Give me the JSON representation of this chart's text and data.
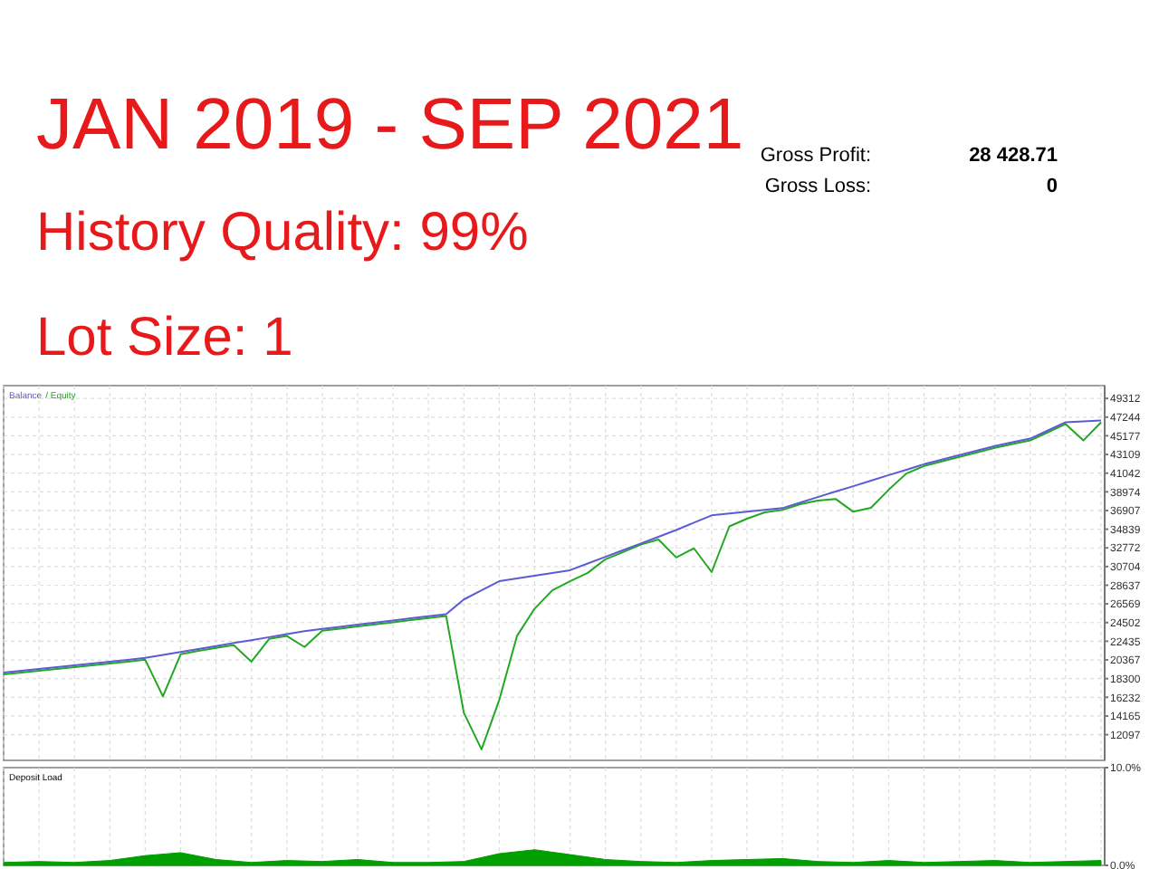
{
  "chart_data": [
    {
      "type": "line",
      "title": "JAN 2019 - SEP 2021",
      "subtitle": "History Quality: 99%",
      "annotations": [
        "Lot Size: 1",
        "Gross Profit:",
        "28 428.71",
        "Gross Loss:",
        "0"
      ],
      "categories": [
        null,
        null,
        null,
        null,
        null,
        null,
        null,
        null,
        null,
        null,
        null,
        null,
        null,
        null,
        null,
        null,
        null,
        null,
        null,
        null,
        null,
        null,
        null,
        null,
        null,
        null,
        null,
        null,
        null,
        null,
        null,
        null,
        null,
        null,
        null,
        null,
        null,
        null,
        null,
        null,
        null,
        null,
        null,
        null,
        null,
        null,
        null,
        null,
        null,
        null,
        null,
        null,
        null,
        null,
        null,
        null,
        null,
        null,
        null,
        null,
        null,
        null,
        null
      ],
      "ylim": [
        9250,
        50730
      ],
      "yticks": [
        12097,
        14165,
        16232,
        18300,
        20367,
        22435,
        24502,
        26569,
        28637,
        30704,
        32772,
        34839,
        36907,
        38974,
        41042,
        43109,
        45177,
        47244,
        49312
      ],
      "grid": true,
      "tick_labels": "y",
      "series": [
        {
          "name": "Balance",
          "color": "#5b5bd6",
          "values": [
            18970,
            19170,
            19370,
            19570,
            19780,
            19980,
            20180,
            20380,
            20590,
            20920,
            21250,
            21580,
            21910,
            22240,
            22560,
            22890,
            23220,
            23550,
            23810,
            24040,
            24270,
            24510,
            24740,
            24970,
            25210,
            25440,
            27060,
            28070,
            29080,
            29390,
            29690,
            29990,
            30300,
            31040,
            31780,
            32520,
            33260,
            34000,
            34750,
            35560,
            36370,
            36570,
            36770,
            36970,
            37170,
            37780,
            38390,
            39000,
            39600,
            40210,
            40820,
            41420,
            42030,
            42540,
            43040,
            43550,
            44050,
            44460,
            44860,
            45770,
            46680,
            46770,
            46870
          ]
        },
        {
          "name": "/ Equity",
          "color": "#22a822",
          "values": [
            18770,
            18970,
            19170,
            19370,
            19580,
            19780,
            19980,
            20180,
            20390,
            16340,
            20990,
            21380,
            21710,
            22000,
            20180,
            22690,
            23020,
            21800,
            23610,
            23840,
            24070,
            24310,
            24540,
            24770,
            25010,
            25240,
            14520,
            10470,
            15930,
            23010,
            26050,
            28070,
            29080,
            30000,
            31510,
            32300,
            33130,
            33700,
            31710,
            32720,
            30090,
            35150,
            36000,
            36700,
            36970,
            37600,
            38000,
            38190,
            36770,
            37200,
            39200,
            41000,
            41830,
            42340,
            42840,
            43350,
            43850,
            44260,
            44660,
            45570,
            46480,
            44660,
            46670
          ]
        }
      ]
    },
    {
      "type": "area",
      "title": "Deposit Load",
      "categories": [
        null,
        null,
        null,
        null,
        null,
        null,
        null,
        null,
        null,
        null,
        null,
        null,
        null,
        null,
        null,
        null,
        null,
        null,
        null,
        null,
        null,
        null,
        null,
        null,
        null,
        null,
        null,
        null,
        null,
        null,
        null,
        null
      ],
      "ylim": [
        0,
        10
      ],
      "yticks": [
        {
          "value": 0,
          "label": "0.0%"
        },
        {
          "value": 10,
          "label": "10.0%"
        }
      ],
      "grid": "x",
      "tick_labels": "y",
      "series": [
        {
          "color": "#00a000",
          "values": [
            0.3,
            0.4,
            0.3,
            0.5,
            1.0,
            1.3,
            0.6,
            0.3,
            0.5,
            0.4,
            0.6,
            0.3,
            0.3,
            0.4,
            1.2,
            1.6,
            1.1,
            0.6,
            0.4,
            0.3,
            0.5,
            0.6,
            0.7,
            0.4,
            0.3,
            0.5,
            0.3,
            0.4,
            0.5,
            0.3,
            0.4,
            0.5
          ]
        }
      ]
    }
  ]
}
